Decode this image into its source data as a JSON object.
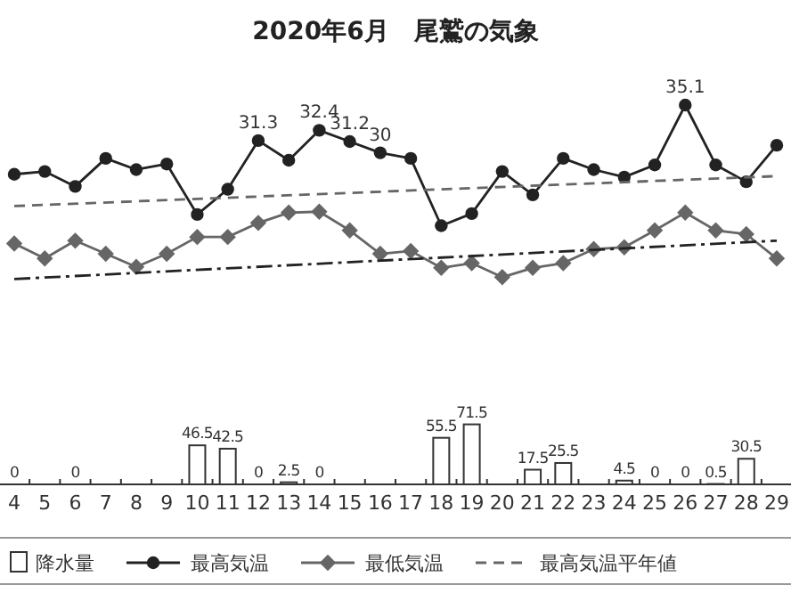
{
  "chart_data": [
    {
      "type": "line",
      "title": "2020年6月　尾鷲の気象",
      "categories": [
        "4",
        "5",
        "6",
        "7",
        "8",
        "9",
        "10",
        "11",
        "12",
        "13",
        "14",
        "15",
        "16",
        "17",
        "18",
        "19",
        "20",
        "21",
        "22",
        "23",
        "24",
        "25",
        "26",
        "27",
        "28",
        "29"
      ],
      "series": [
        {
          "name": "最高気温",
          "color": "#222222",
          "marker": "circle",
          "line_style": "solid",
          "values": [
            27.7,
            28.0,
            26.4,
            29.4,
            28.2,
            28.8,
            23.4,
            26.1,
            31.3,
            29.2,
            32.4,
            31.2,
            30,
            29.4,
            22.2,
            23.5,
            28.0,
            25.5,
            29.4,
            28.2,
            27.4,
            28.7,
            35.1,
            28.7,
            26.9,
            30.8
          ],
          "value_labels": [
            null,
            null,
            null,
            null,
            null,
            null,
            null,
            null,
            "31.3",
            null,
            "32.4",
            "31.2",
            "30",
            null,
            null,
            null,
            null,
            null,
            null,
            null,
            null,
            null,
            "35.1",
            null,
            null,
            null
          ]
        },
        {
          "name": "最低気温",
          "color": "#666666",
          "marker": "diamond",
          "line_style": "solid",
          "values": [
            20.3,
            18.7,
            20.6,
            19.2,
            17.8,
            19.2,
            21.0,
            21.0,
            22.5,
            23.6,
            23.7,
            21.7,
            19.2,
            19.5,
            17.7,
            18.2,
            16.7,
            17.7,
            18.2,
            19.7,
            19.9,
            21.7,
            23.6,
            21.7,
            21.3,
            18.7
          ]
        },
        {
          "name": "最高気温平年値",
          "color": "#666666",
          "marker": "none",
          "line_style": "dashed",
          "x": [
            "4",
            "29"
          ],
          "values": [
            24.3,
            27.5
          ]
        },
        {
          "color": "#222222",
          "marker": "none",
          "line_style": "dashdot",
          "x": [
            "4",
            "29"
          ],
          "values": [
            16.5,
            20.6
          ]
        }
      ],
      "tick_labels": false,
      "grid": false,
      "legend": "bottom"
    },
    {
      "type": "bar",
      "categories": [
        "4",
        "5",
        "6",
        "7",
        "8",
        "9",
        "10",
        "11",
        "12",
        "13",
        "14",
        "15",
        "16",
        "17",
        "18",
        "19",
        "20",
        "21",
        "22",
        "23",
        "24",
        "25",
        "26",
        "27",
        "28",
        "29"
      ],
      "series": [
        {
          "name": "降水量",
          "color": "#ffffff",
          "values": [
            0,
            null,
            0,
            null,
            null,
            null,
            46.5,
            42.5,
            0,
            2.5,
            0,
            null,
            null,
            null,
            55.5,
            71.5,
            null,
            17.5,
            25.5,
            null,
            4.5,
            0,
            0,
            0.5,
            30.5,
            null
          ]
        }
      ],
      "data_labels": true,
      "tick_labels": "x",
      "grid": false,
      "legend": "bottom"
    }
  ]
}
